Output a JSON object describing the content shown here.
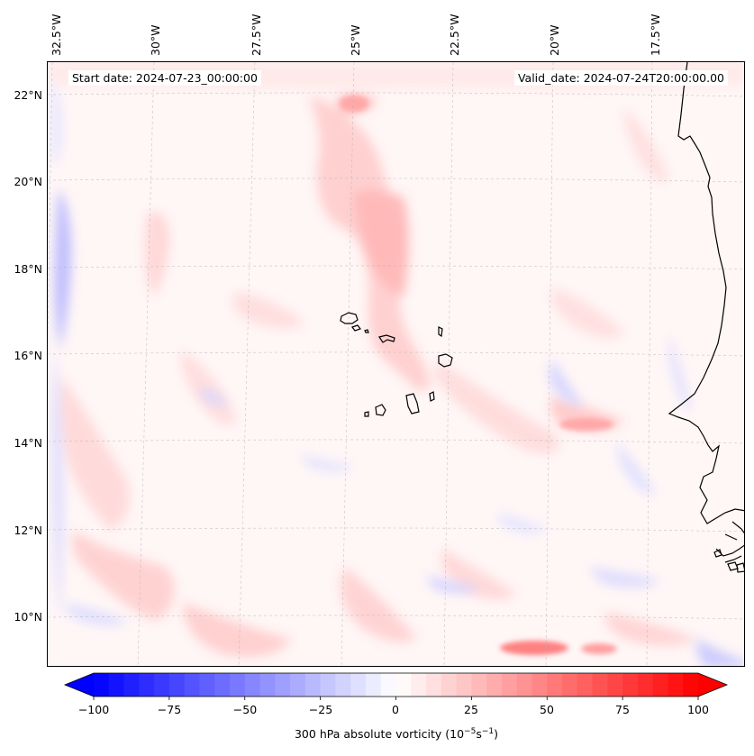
{
  "map": {
    "start_date": "Start date: 2024-07-23_00:00:00",
    "valid_date": "Valid_date: 2024-07-24T20:00:00.00",
    "lon_labels": [
      "32.5°W",
      "30°W",
      "27.5°W",
      "25°W",
      "22.5°W",
      "20°W",
      "17.5°W"
    ],
    "lat_labels": [
      "22°N",
      "20°N",
      "18°N",
      "16°N",
      "14°N",
      "12°N",
      "10°N"
    ],
    "variable": "300 hPa absolute vorticity",
    "units_prefix": "300 hPa absolute vorticity (10",
    "units_exp1": "−5",
    "units_mid": "s",
    "units_exp2": "−1",
    "units_suffix": ")",
    "extent": {
      "lon_min": -33.0,
      "lon_max": -15.5,
      "lat_min": 8.9,
      "lat_max": 22.8
    }
  },
  "colorbar": {
    "min": -100,
    "max": 100,
    "ticks": [
      "−100",
      "−75",
      "−50",
      "−25",
      "0",
      "25",
      "50",
      "75",
      "100"
    ],
    "neg_color": "#0000ff",
    "pos_color": "#ff0000",
    "mid_color": "#ffffff"
  },
  "colors": {
    "coast": "#000000",
    "grid": "#b0b0b0"
  }
}
